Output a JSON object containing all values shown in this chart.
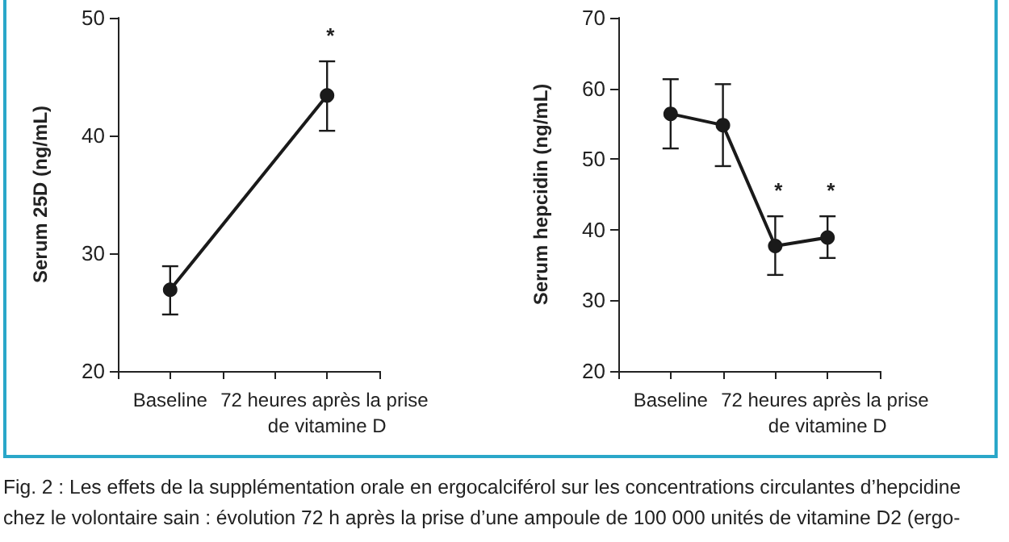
{
  "chart_data": [
    {
      "type": "line",
      "ylabel": "Serum 25D (ng/mL)",
      "categories": [
        null,
        "Baseline",
        null,
        null,
        "72 heures après la prise de vitamine D",
        null
      ],
      "values": [
        null,
        26.9,
        null,
        null,
        43.4,
        null
      ],
      "errors": [
        null,
        [
          24.8,
          28.9
        ],
        null,
        null,
        [
          40.4,
          46.3
        ],
        null
      ],
      "color": "#1a1a1a",
      "marker": "circle",
      "line_style": "solid",
      "ylim": [
        20,
        50
      ],
      "yticks": [
        20,
        30,
        40,
        50
      ],
      "annotations": [
        "*",
        "Fig. 2 : Les effets de la supplémentation orale en ergocalciférol sur les concentrations circulantes d’hepcidine chez le volontaire sain : évolution 72 h après la prise d’une ampoule de 100 000 unités de vitamine D2 (ergo-"
      ]
    },
    {
      "type": "line",
      "ylabel": "Serum hepcidin (ng/mL)",
      "categories": [
        null,
        "Baseline",
        null,
        null,
        "72 heures après la prise de vitamine D",
        null
      ],
      "values": [
        null,
        56.4,
        54.8,
        37.7,
        38.9,
        null
      ],
      "errors": [
        null,
        [
          51.5,
          61.3
        ],
        [
          49.0,
          60.6
        ],
        [
          33.6,
          41.9
        ],
        [
          36.0,
          41.9
        ],
        null
      ],
      "color": "#1a1a1a",
      "marker": "circle",
      "line_style": "solid",
      "ylim": [
        20,
        70
      ],
      "yticks": [
        20,
        30,
        40,
        50,
        60,
        70
      ],
      "annotations": [
        "*",
        "*"
      ]
    }
  ]
}
